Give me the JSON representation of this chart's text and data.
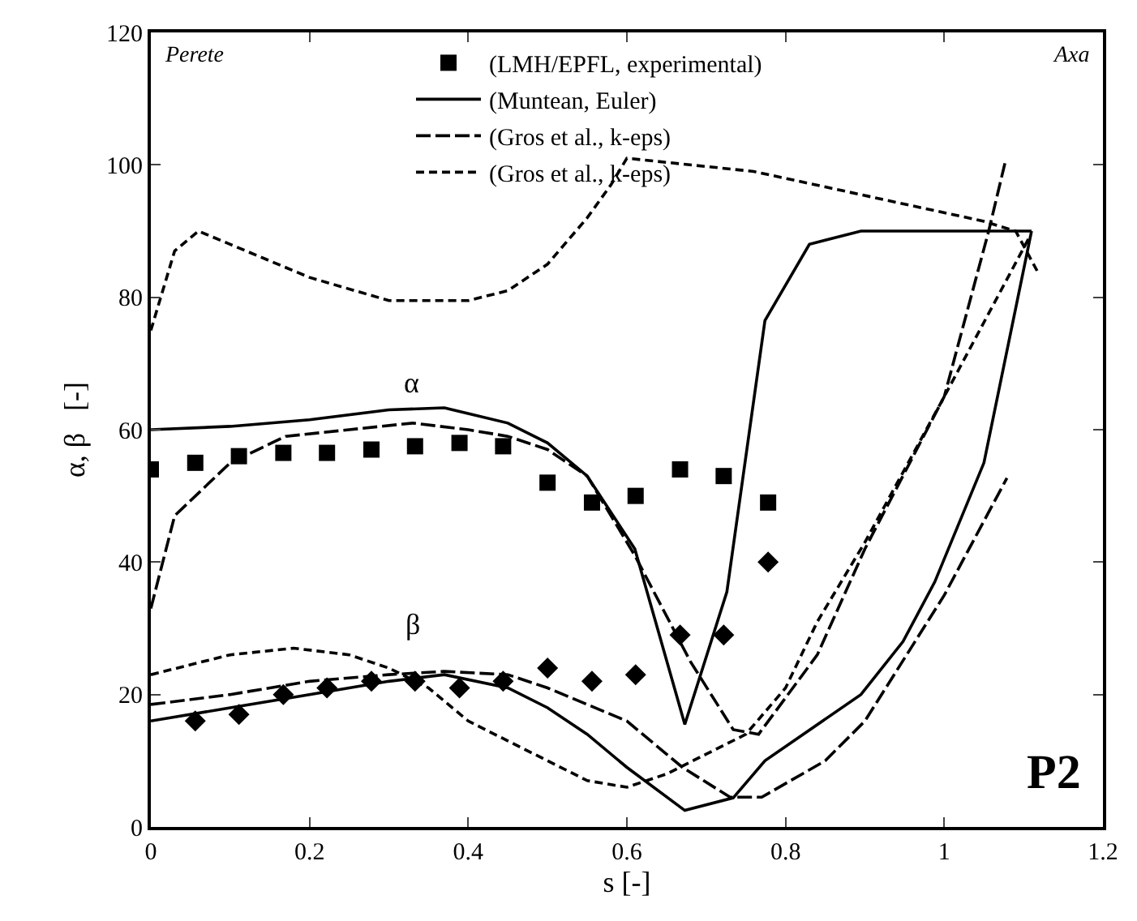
{
  "chart_data": {
    "type": "line",
    "xlabel": "s [-]",
    "ylabel": "α, β   [-]",
    "xlim": [
      0,
      1.2
    ],
    "xticks": [
      0,
      0.2,
      0.4,
      0.6,
      0.8,
      1,
      1.2
    ],
    "ylim": [
      0,
      120
    ],
    "yticks": [
      0,
      20,
      40,
      60,
      80,
      100,
      120
    ],
    "legend": "top",
    "annotations": [
      "Perete",
      "Axa",
      "α",
      "β",
      "P2"
    ],
    "series": [
      {
        "name": "(LMH/EPFL, experimental)",
        "type": "scatter",
        "marker": "square",
        "color": "#000000",
        "x": [
          0,
          0.056,
          0.111,
          0.167,
          0.222,
          0.278,
          0.333,
          0.389,
          0.444,
          0.5,
          0.556,
          0.611,
          0.667,
          0.722,
          0.778
        ],
        "values": [
          54,
          55,
          56,
          56.5,
          56.5,
          57,
          57.5,
          58,
          57.5,
          52,
          49,
          50,
          54,
          53,
          49
        ]
      },
      {
        "name": "(Muntean, Euler)",
        "line_style": "solid",
        "color": "#000000",
        "x": [
          0,
          0.1,
          0.2,
          0.3,
          0.37,
          0.45,
          0.5,
          0.55,
          0.61,
          0.673,
          0.726,
          0.774,
          0.83,
          0.895,
          1.11
        ],
        "values": [
          60,
          60.5,
          61.5,
          63,
          63.3,
          61,
          58,
          53,
          42,
          15.5,
          35.5,
          76.5,
          88,
          90,
          90
        ]
      },
      {
        "name": "(Gros et al., k-eps)",
        "line_style": "dashed",
        "color": "#000000",
        "x": [
          0,
          0.03,
          0.1,
          0.17,
          0.25,
          0.33,
          0.4,
          0.45,
          0.5,
          0.55,
          0.61,
          0.68,
          0.734,
          0.766,
          0.84,
          0.9,
          1.0,
          1.056,
          1.077
        ],
        "values": [
          33,
          47,
          55,
          59,
          60,
          61,
          60,
          59,
          57,
          53,
          41,
          25,
          14.7,
          14,
          26,
          42,
          65,
          90,
          100.5
        ]
      },
      {
        "name": "(Gros et al., k-eps)",
        "line_style": "dotted",
        "color": "#000000",
        "x": [
          0,
          0.03,
          0.06,
          0.1,
          0.2,
          0.3,
          0.4,
          0.45,
          0.5,
          0.55,
          0.58,
          0.6,
          0.76,
          1.049,
          1.09,
          1.117
        ],
        "values": [
          75,
          87,
          90,
          88,
          83,
          79.5,
          79.5,
          81,
          85,
          92,
          97,
          101,
          99,
          91.5,
          90,
          84
        ]
      },
      {
        "type": "scatter",
        "marker": "diamond",
        "color": "#000000",
        "x": [
          0.056,
          0.111,
          0.167,
          0.222,
          0.278,
          0.333,
          0.389,
          0.444,
          0.5,
          0.556,
          0.611,
          0.667,
          0.722,
          0.778
        ],
        "values": [
          16,
          17,
          20,
          21,
          22,
          22,
          21,
          22,
          24,
          22,
          23,
          29,
          29,
          40
        ]
      },
      {
        "line_style": "solid",
        "color": "#000000",
        "x": [
          0,
          0.1,
          0.2,
          0.3,
          0.37,
          0.45,
          0.5,
          0.55,
          0.6,
          0.673,
          0.734,
          0.774,
          0.895,
          0.948,
          0.988,
          1.05,
          1.11
        ],
        "values": [
          16,
          18,
          20,
          22,
          23,
          21,
          18,
          14,
          9,
          2.5,
          4.4,
          10,
          20,
          28,
          37,
          55,
          90
        ]
      },
      {
        "line_style": "dashed",
        "color": "#000000",
        "x": [
          0,
          0.1,
          0.2,
          0.3,
          0.37,
          0.45,
          0.5,
          0.6,
          0.67,
          0.73,
          0.77,
          0.85,
          0.9,
          1.0,
          1.079
        ],
        "values": [
          18.5,
          20,
          22,
          23,
          23.5,
          23,
          21,
          16,
          9,
          4.5,
          4.5,
          10,
          16,
          35,
          52.7
        ]
      },
      {
        "line_style": "dotted",
        "color": "#000000",
        "x": [
          0,
          0.1,
          0.18,
          0.25,
          0.3,
          0.35,
          0.4,
          0.45,
          0.5,
          0.55,
          0.6,
          0.65,
          0.7,
          0.75,
          0.8,
          0.84,
          0.9,
          1.0,
          1.107
        ],
        "values": [
          23,
          26,
          27,
          26,
          24,
          21,
          16,
          13,
          10,
          7,
          6,
          8,
          11,
          14,
          21,
          31,
          43,
          65,
          89
        ]
      }
    ]
  }
}
